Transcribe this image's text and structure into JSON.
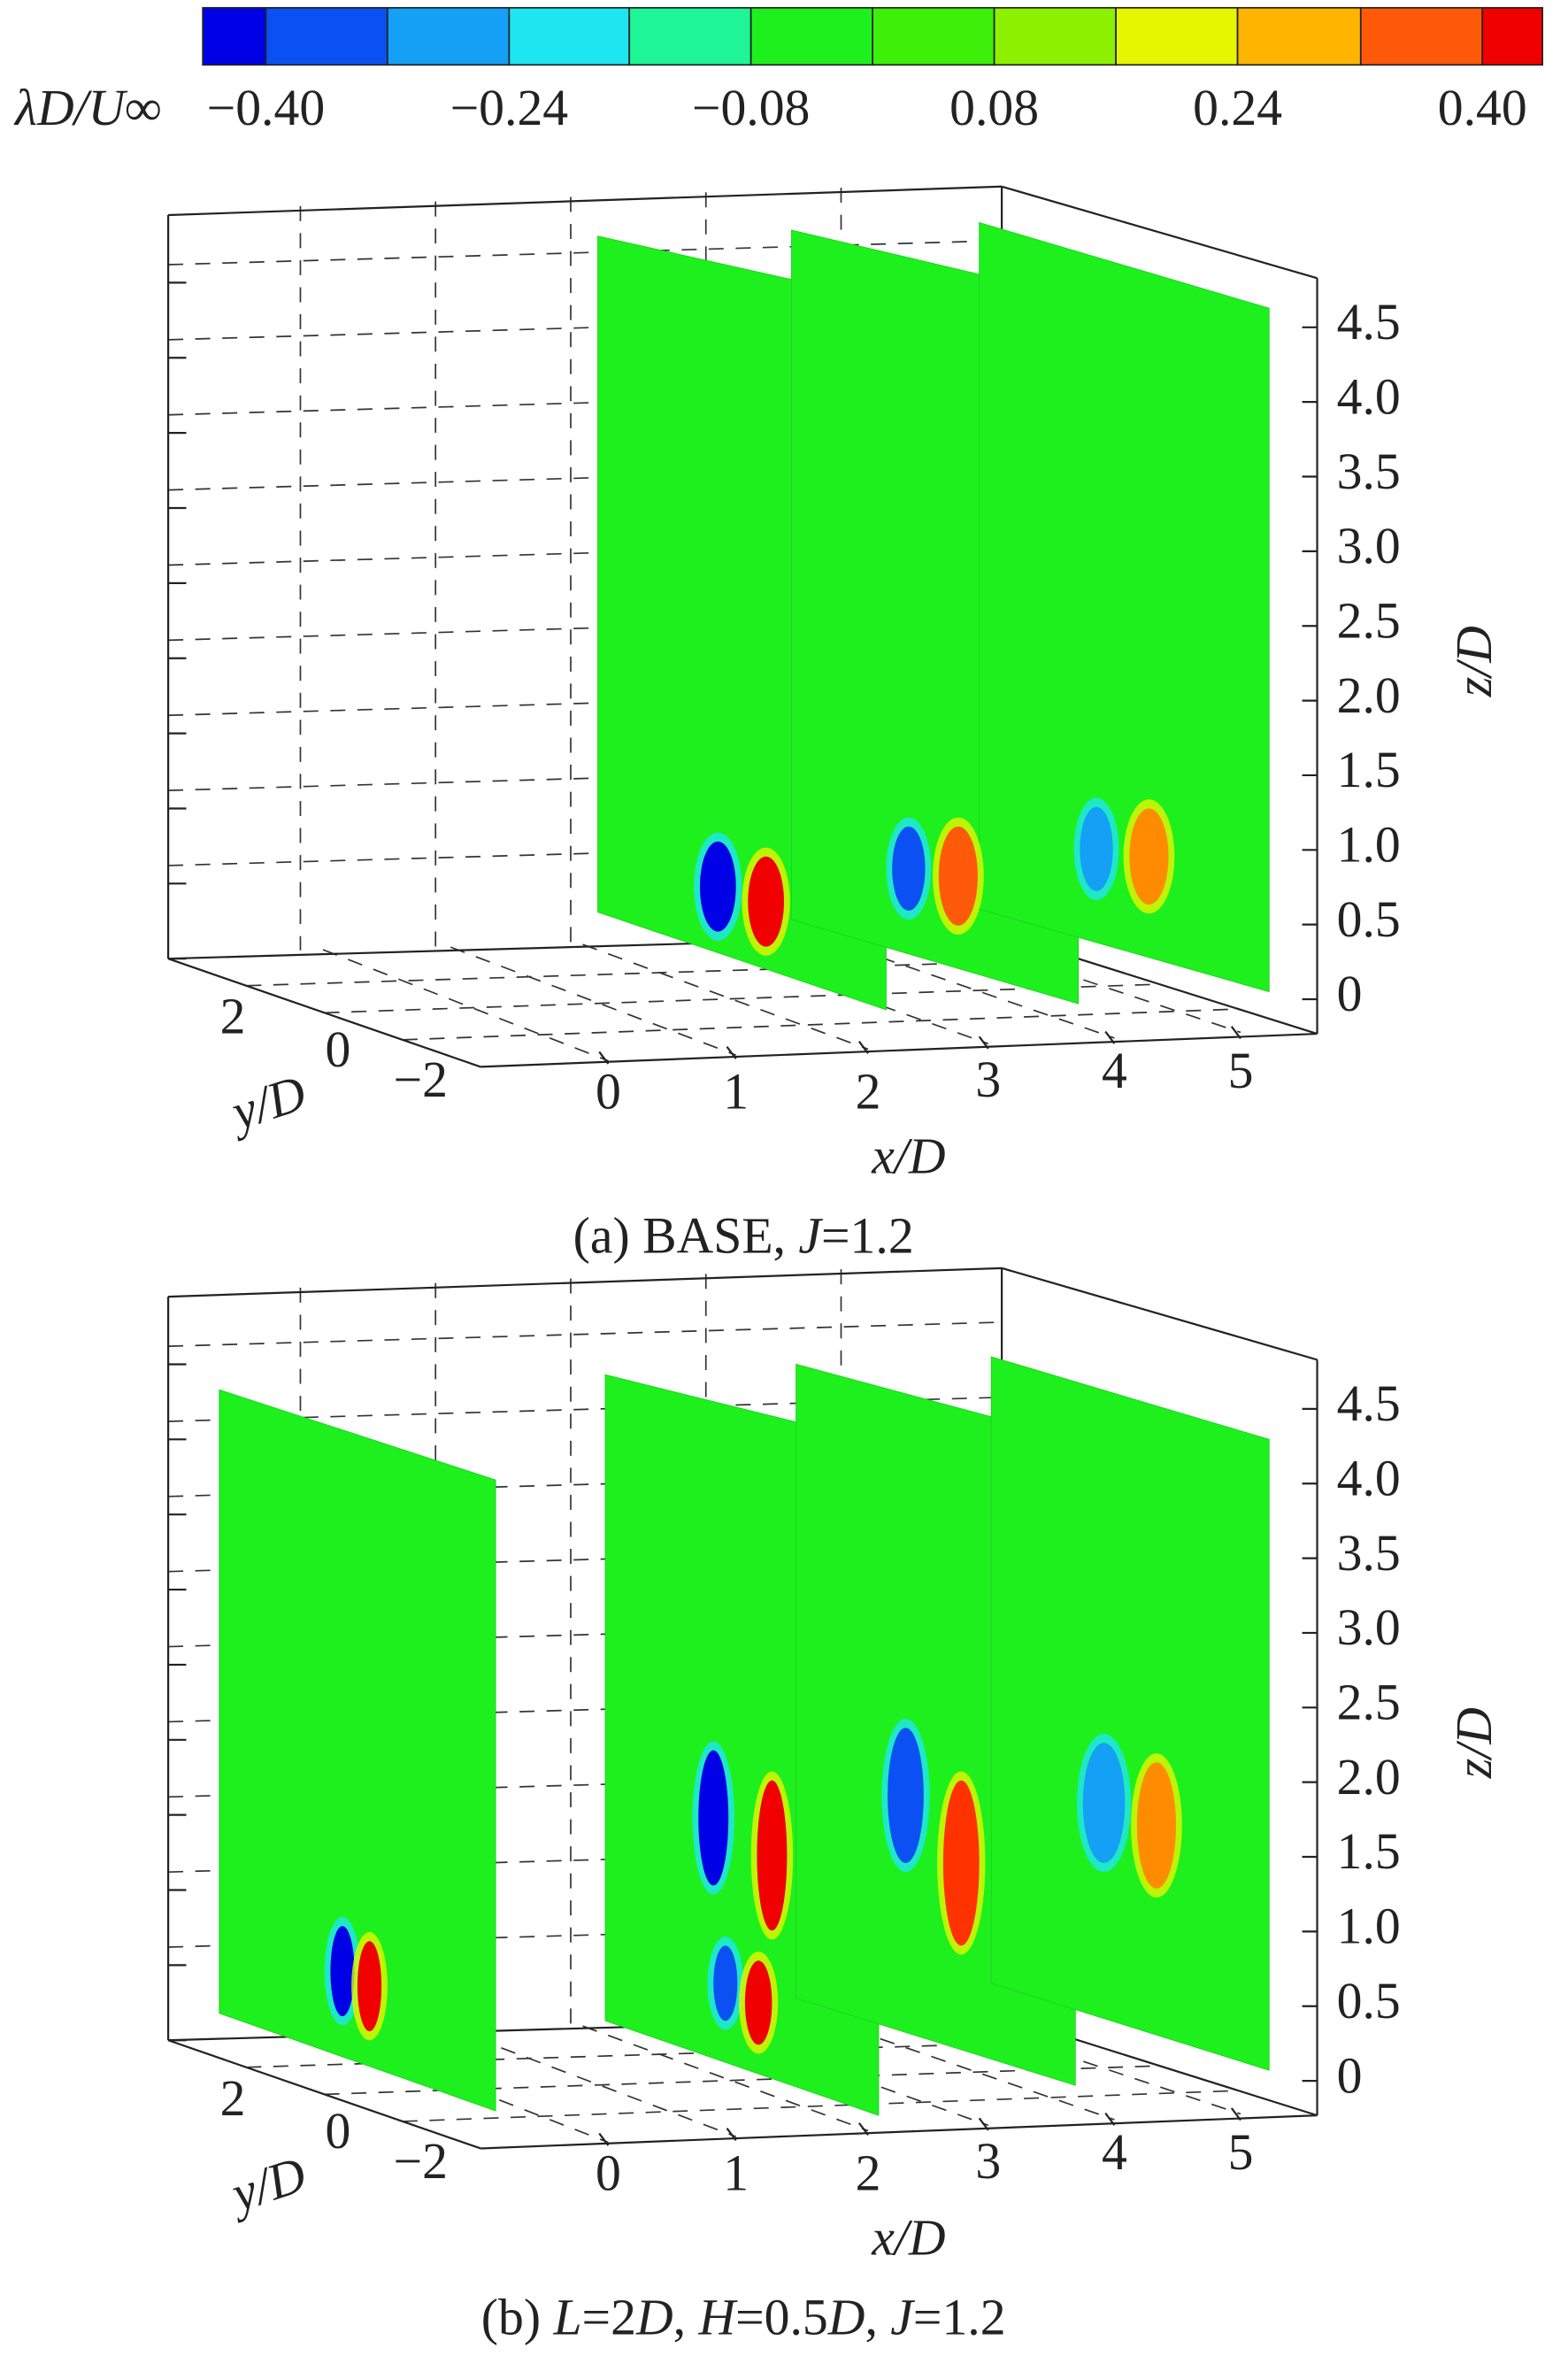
{
  "colorbar": {
    "label": "λD/U∞",
    "colors": [
      "#0000e6",
      "#0a50f2",
      "#14a0f5",
      "#1ee6f0",
      "#1ef596",
      "#1ef01e",
      "#3cf00a",
      "#8cf000",
      "#e6f500",
      "#ffb400",
      "#ff5a0a",
      "#f00000"
    ],
    "tick_labels": [
      "−0.40",
      "−0.24",
      "−0.08",
      "0.08",
      "0.24",
      "0.40"
    ]
  },
  "panels": [
    {
      "caption": [
        "(a) BASE, ",
        "J",
        "=1.2"
      ],
      "x_label": "x/D",
      "y_label": "y/D",
      "z_label": "z/D",
      "x_ticks": [
        "0",
        "1",
        "2",
        "3",
        "4",
        "5"
      ],
      "y_ticks": [
        "2",
        "0",
        "−2"
      ],
      "z_ticks": [
        "0",
        "0.5",
        "1.0",
        "1.5",
        "2.0",
        "2.5",
        "3.0",
        "3.5",
        "4.0",
        "4.5"
      ]
    },
    {
      "caption": [
        "(b) ",
        "L",
        "=2",
        "D",
        ", ",
        "H",
        "=0.5",
        "D",
        ", ",
        "J",
        "=1.2"
      ],
      "x_label": "x/D",
      "y_label": "y/D",
      "z_label": "z/D",
      "x_ticks": [
        "0",
        "1",
        "2",
        "3",
        "4",
        "5"
      ],
      "y_ticks": [
        "2",
        "0",
        "−2"
      ],
      "z_ticks": [
        "0",
        "0.5",
        "1.0",
        "1.5",
        "2.0",
        "2.5",
        "3.0",
        "3.5",
        "4.0",
        "4.5"
      ]
    }
  ]
}
